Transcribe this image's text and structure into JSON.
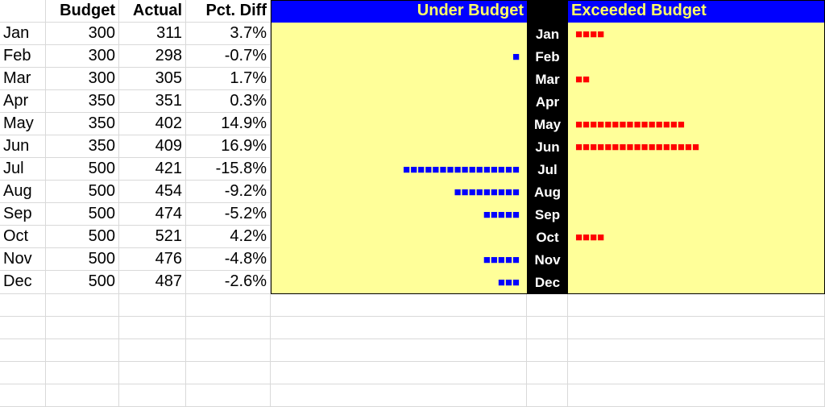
{
  "header": {
    "col_a": "",
    "budget": "Budget",
    "actual": "Actual",
    "pct_diff": "Pct. Diff",
    "under": "Under Budget",
    "exceeded": "Exceeded Budget"
  },
  "rows": [
    {
      "month": "Jan",
      "budget": "300",
      "actual": "311",
      "pct": "3.7%",
      "under": "",
      "over": "■■■■"
    },
    {
      "month": "Feb",
      "budget": "300",
      "actual": "298",
      "pct": "-0.7%",
      "under": "■",
      "over": ""
    },
    {
      "month": "Mar",
      "budget": "300",
      "actual": "305",
      "pct": "1.7%",
      "under": "",
      "over": "■■"
    },
    {
      "month": "Apr",
      "budget": "350",
      "actual": "351",
      "pct": "0.3%",
      "under": "",
      "over": ""
    },
    {
      "month": "May",
      "budget": "350",
      "actual": "402",
      "pct": "14.9%",
      "under": "",
      "over": "■■■■■■■■■■■■■■■"
    },
    {
      "month": "Jun",
      "budget": "350",
      "actual": "409",
      "pct": "16.9%",
      "under": "",
      "over": "■■■■■■■■■■■■■■■■■"
    },
    {
      "month": "Jul",
      "budget": "500",
      "actual": "421",
      "pct": "-15.8%",
      "under": "■■■■■■■■■■■■■■■■",
      "over": ""
    },
    {
      "month": "Aug",
      "budget": "500",
      "actual": "454",
      "pct": "-9.2%",
      "under": "■■■■■■■■■",
      "over": ""
    },
    {
      "month": "Sep",
      "budget": "500",
      "actual": "474",
      "pct": "-5.2%",
      "under": "■■■■■",
      "over": ""
    },
    {
      "month": "Oct",
      "budget": "500",
      "actual": "521",
      "pct": "4.2%",
      "under": "",
      "over": "■■■■"
    },
    {
      "month": "Nov",
      "budget": "500",
      "actual": "476",
      "pct": "-4.8%",
      "under": "■■■■■",
      "over": ""
    },
    {
      "month": "Dec",
      "budget": "500",
      "actual": "487",
      "pct": "-2.6%",
      "under": "■■■",
      "over": ""
    }
  ],
  "empty_rows": 5,
  "colors": {
    "band": "#ffff99",
    "header_blue": "#0000ff",
    "header_text": "#ffff66",
    "under_square": "#0000ff",
    "over_square": "#ff0000",
    "month_band": "#000000"
  }
}
